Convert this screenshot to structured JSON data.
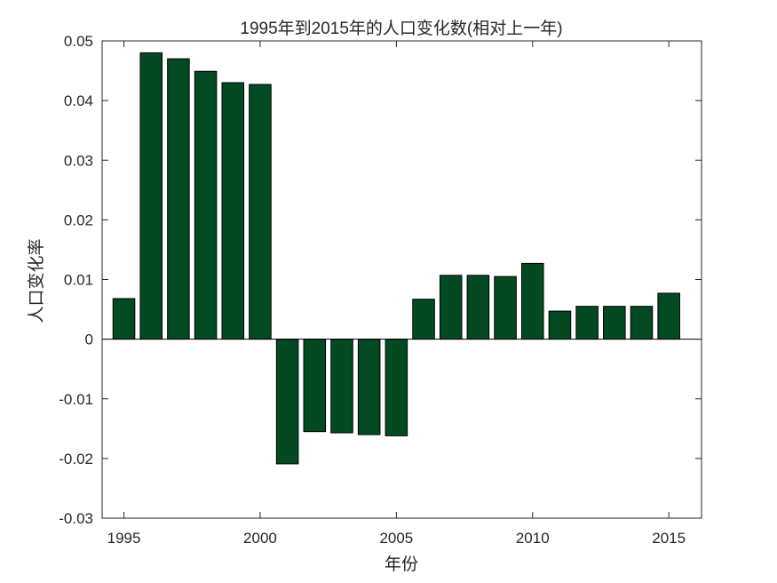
{
  "chart_data": {
    "type": "bar",
    "title": "1995年到2015年的人口变化数(相对上一年)",
    "xlabel": "年份",
    "ylabel": "人口变化率",
    "x": [
      1995,
      1996,
      1997,
      1998,
      1999,
      2000,
      2001,
      2002,
      2003,
      2004,
      2005,
      2006,
      2007,
      2008,
      2009,
      2010,
      2011,
      2012,
      2013,
      2014,
      2015
    ],
    "values": [
      0.0068,
      0.048,
      0.047,
      0.0449,
      0.043,
      0.0427,
      -0.0209,
      -0.0155,
      -0.0157,
      -0.016,
      -0.0162,
      0.0067,
      0.0107,
      0.0107,
      0.0105,
      0.0127,
      0.0047,
      0.0055,
      0.0055,
      0.0055,
      0.0077
    ],
    "xlim": [
      1994.2,
      2016.2
    ],
    "ylim": [
      -0.03,
      0.05
    ],
    "xticks": [
      1995,
      2000,
      2005,
      2010,
      2015
    ],
    "xtick_labels": [
      "1995",
      "2000",
      "2005",
      "2010",
      "2015"
    ],
    "yticks": [
      -0.03,
      -0.02,
      -0.01,
      0,
      0.01,
      0.02,
      0.03,
      0.04,
      0.05
    ],
    "ytick_labels": [
      "-0.03",
      "-0.02",
      "-0.01",
      "0",
      "0.01",
      "0.02",
      "0.03",
      "0.04",
      "0.05"
    ],
    "bar_color": "#034a22",
    "bar_edge_color": "#000000",
    "grid": false,
    "legend": "none"
  }
}
